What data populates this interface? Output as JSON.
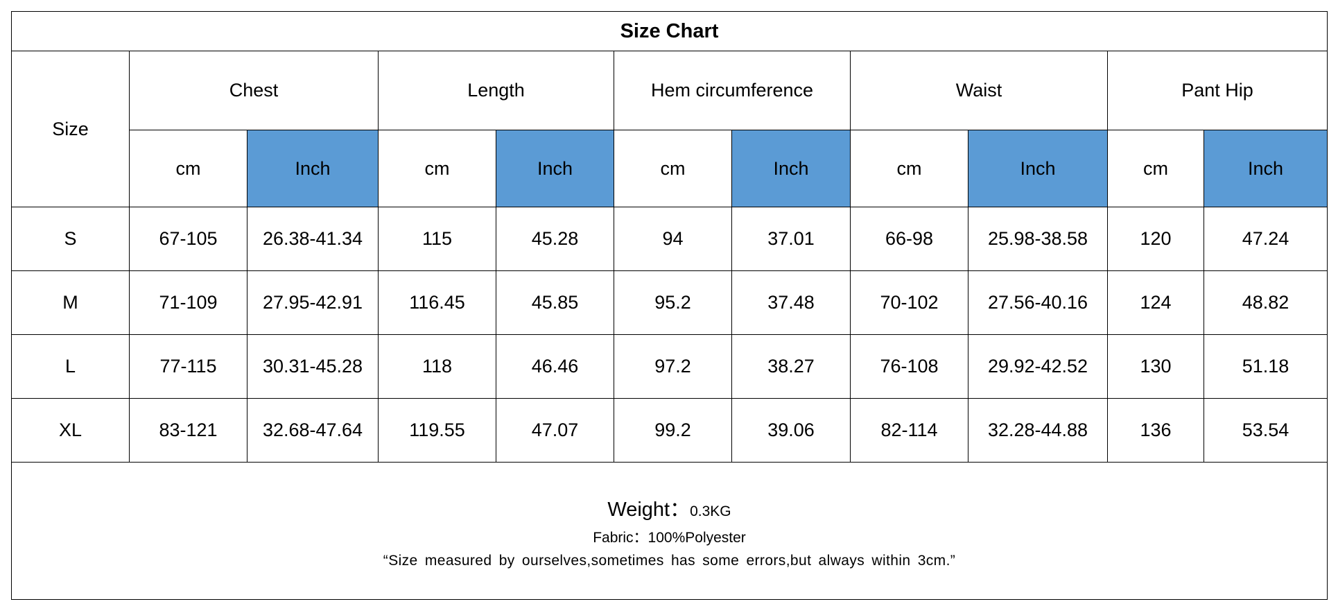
{
  "title": "Size Chart",
  "header": {
    "size": "Size",
    "groups": [
      "Chest",
      "Length",
      "Hem circumference",
      "Waist",
      "Pant Hip"
    ],
    "units": [
      "cm",
      "Inch",
      "cm",
      "Inch",
      "cm",
      "Inch",
      "cm",
      "Inch",
      "cm",
      "Inch"
    ]
  },
  "table": {
    "rows": [
      [
        "S",
        "67-105",
        "26.38-41.34",
        "115",
        "45.28",
        "94",
        "37.01",
        "66-98",
        "25.98-38.58",
        "120",
        "47.24"
      ],
      [
        "M",
        "71-109",
        "27.95-42.91",
        "116.45",
        "45.85",
        "95.2",
        "37.48",
        "70-102",
        "27.56-40.16",
        "124",
        "48.82"
      ],
      [
        "L",
        "77-115",
        "30.31-45.28",
        "118",
        "46.46",
        "97.2",
        "38.27",
        "76-108",
        "29.92-42.52",
        "130",
        "51.18"
      ],
      [
        "XL",
        "83-121",
        "32.68-47.64",
        "119.55",
        "47.07",
        "99.2",
        "39.06",
        "82-114",
        "32.28-44.88",
        "136",
        "53.54"
      ]
    ]
  },
  "footer": {
    "weight_label": "Weight：",
    "weight_value": "0.3KG",
    "fabric": "Fabric：100%Polyester",
    "note": "“Size measured by ourselves,sometimes has some errors,but always within 3cm.”"
  }
}
